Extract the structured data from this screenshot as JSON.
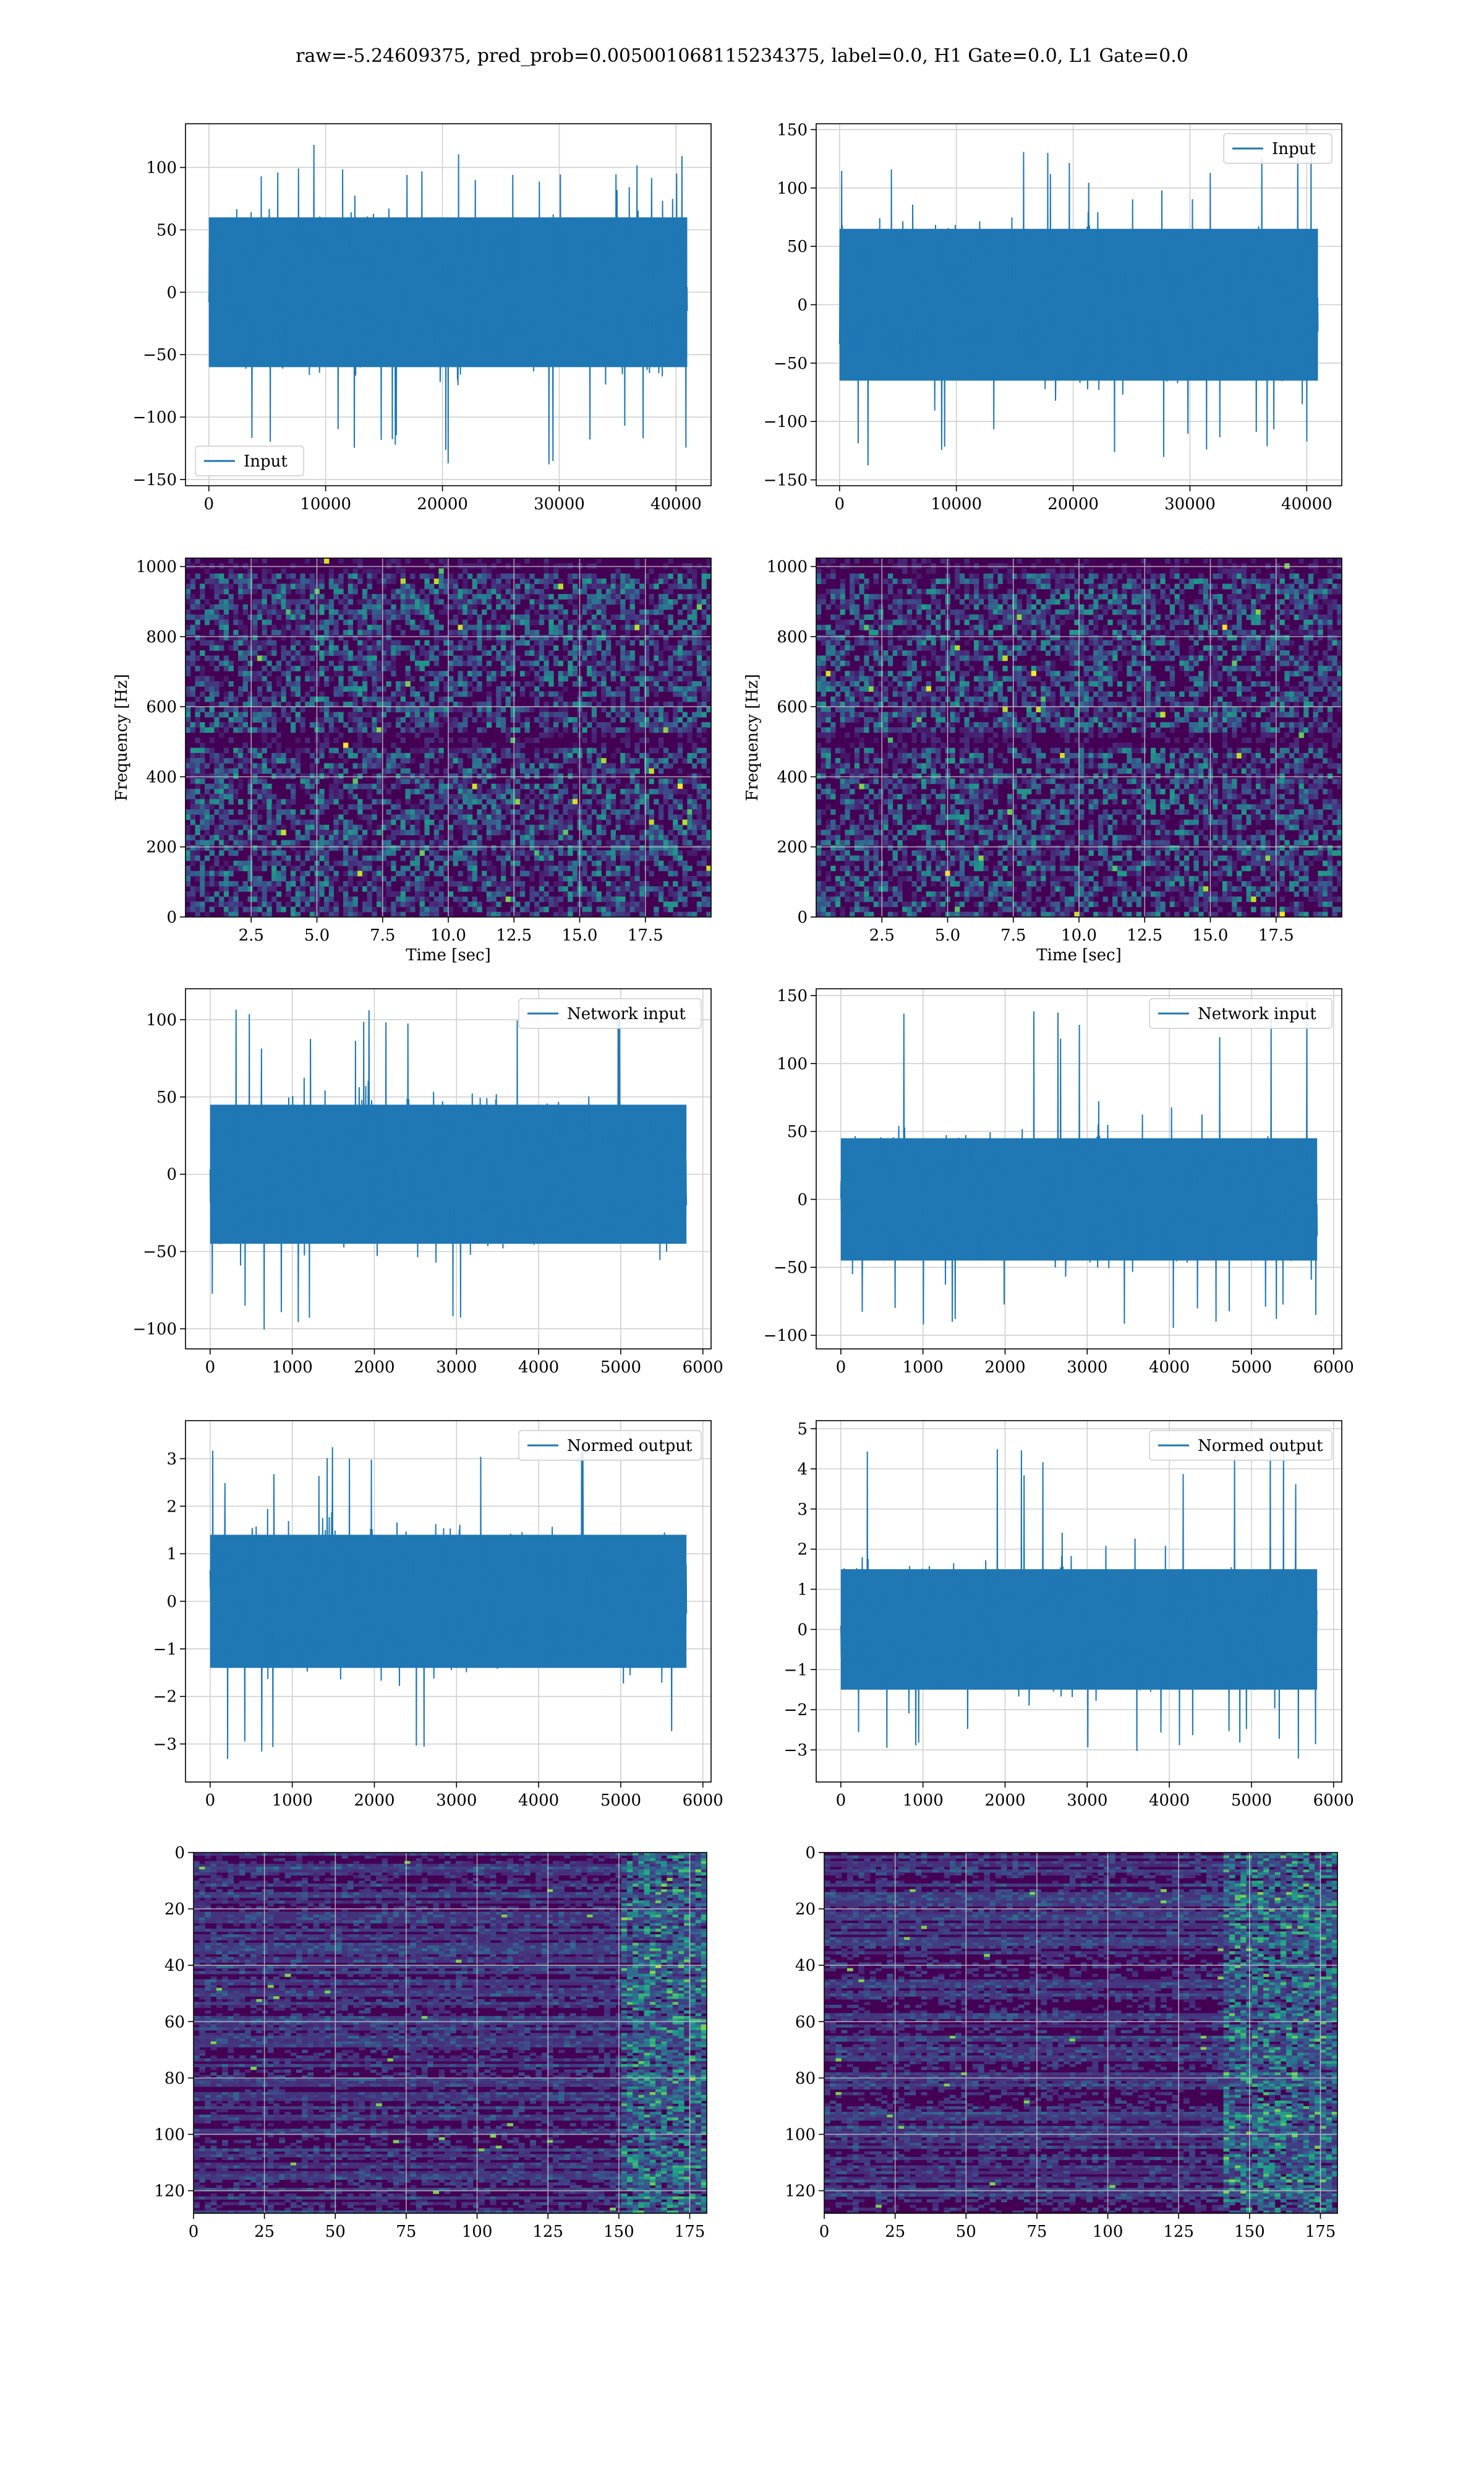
{
  "suptitle": "raw=-5.24609375, pred_prob=0.005001068115234375, label=0.0, H1 Gate=0.0, L1 Gate=0.0",
  "colors": {
    "line": "#1f77b4",
    "grid": "#d0d0d0",
    "viridis_low": "#440154",
    "viridis_mid": "#21918c",
    "viridis_high": "#fde725"
  },
  "chart_data": [
    {
      "id": "input-h1",
      "type": "line",
      "title": "",
      "xlabel": "",
      "ylabel": "",
      "legend": {
        "label": "Input",
        "loc": "lower-left"
      },
      "xlim": [
        -2000,
        43000
      ],
      "ylim": [
        -155,
        135
      ],
      "xticks": [
        0,
        10000,
        20000,
        30000,
        40000
      ],
      "xticklabels": [
        "0",
        "10000",
        "20000",
        "30000",
        "40000"
      ],
      "yticks": [
        -150,
        -100,
        -50,
        0,
        50,
        100
      ],
      "yticklabels": [
        "−150",
        "−100",
        "−50",
        "0",
        "50",
        "100"
      ],
      "signal": {
        "n": 40960,
        "x_range": [
          0,
          40960
        ],
        "typical_amplitude": 60,
        "envelope_max": 119,
        "envelope_min": -138
      }
    },
    {
      "id": "input-l1",
      "type": "line",
      "title": "",
      "xlabel": "",
      "ylabel": "",
      "legend": {
        "label": "Input",
        "loc": "upper-right"
      },
      "xlim": [
        -2000,
        43000
      ],
      "ylim": [
        -155,
        155
      ],
      "xticks": [
        0,
        10000,
        20000,
        30000,
        40000
      ],
      "xticklabels": [
        "0",
        "10000",
        "20000",
        "30000",
        "40000"
      ],
      "yticks": [
        -150,
        -100,
        -50,
        0,
        50,
        100,
        150
      ],
      "yticklabels": [
        "−150",
        "−100",
        "−50",
        "0",
        "50",
        "100",
        "150"
      ],
      "signal": {
        "n": 40960,
        "x_range": [
          0,
          40960
        ],
        "typical_amplitude": 65,
        "envelope_max": 140,
        "envelope_min": -142
      }
    },
    {
      "id": "spec-h1",
      "type": "heatmap",
      "title": "",
      "xlabel": "Time [sec]",
      "ylabel": "Frequency [Hz]",
      "xlim": [
        0,
        20
      ],
      "ylim": [
        0,
        1024
      ],
      "xticks": [
        2.5,
        5.0,
        7.5,
        10.0,
        12.5,
        15.0,
        17.5
      ],
      "xticklabels": [
        "2.5",
        "5.0",
        "7.5",
        "10.0",
        "12.5",
        "15.0",
        "17.5"
      ],
      "yticks": [
        0,
        200,
        400,
        600,
        800,
        1000
      ],
      "yticklabels": [
        "0",
        "200",
        "400",
        "600",
        "800",
        "1000"
      ],
      "colormap": "viridis",
      "dark_bands_hz": [
        500,
        1000
      ]
    },
    {
      "id": "spec-l1",
      "type": "heatmap",
      "title": "",
      "xlabel": "Time [sec]",
      "ylabel": "Frequency [Hz]",
      "xlim": [
        0,
        20
      ],
      "ylim": [
        0,
        1024
      ],
      "xticks": [
        2.5,
        5.0,
        7.5,
        10.0,
        12.5,
        15.0,
        17.5
      ],
      "xticklabels": [
        "2.5",
        "5.0",
        "7.5",
        "10.0",
        "12.5",
        "15.0",
        "17.5"
      ],
      "yticks": [
        0,
        200,
        400,
        600,
        800,
        1000
      ],
      "yticklabels": [
        "0",
        "200",
        "400",
        "600",
        "800",
        "1000"
      ],
      "colormap": "viridis",
      "dark_bands_hz": [
        500,
        1000
      ]
    },
    {
      "id": "netin-h1",
      "type": "line",
      "title": "",
      "xlabel": "",
      "ylabel": "",
      "legend": {
        "label": "Network input",
        "loc": "upper-right"
      },
      "xlim": [
        -300,
        6100
      ],
      "ylim": [
        -113,
        120
      ],
      "xticks": [
        0,
        1000,
        2000,
        3000,
        4000,
        5000,
        6000
      ],
      "xticklabels": [
        "0",
        "1000",
        "2000",
        "3000",
        "4000",
        "5000",
        "6000"
      ],
      "yticks": [
        -100,
        -50,
        0,
        50,
        100
      ],
      "yticklabels": [
        "−100",
        "−50",
        "0",
        "50",
        "100"
      ],
      "signal": {
        "n": 5800,
        "x_range": [
          0,
          5800
        ],
        "typical_amplitude": 45,
        "envelope_max": 108,
        "envelope_min": -103
      }
    },
    {
      "id": "netin-l1",
      "type": "line",
      "title": "",
      "xlabel": "",
      "ylabel": "",
      "legend": {
        "label": "Network input",
        "loc": "upper-right"
      },
      "xlim": [
        -300,
        6100
      ],
      "ylim": [
        -110,
        155
      ],
      "xticks": [
        0,
        1000,
        2000,
        3000,
        4000,
        5000,
        6000
      ],
      "xticklabels": [
        "0",
        "1000",
        "2000",
        "3000",
        "4000",
        "5000",
        "6000"
      ],
      "yticks": [
        -100,
        -50,
        0,
        50,
        100,
        150
      ],
      "yticklabels": [
        "−100",
        "−50",
        "0",
        "50",
        "100",
        "150"
      ],
      "signal": {
        "n": 5800,
        "x_range": [
          0,
          5800
        ],
        "typical_amplitude": 45,
        "envelope_max": 148,
        "envelope_min": -103
      }
    },
    {
      "id": "normed-h1",
      "type": "line",
      "title": "",
      "xlabel": "",
      "ylabel": "",
      "legend": {
        "label": "Normed output",
        "loc": "upper-right"
      },
      "xlim": [
        -300,
        6100
      ],
      "ylim": [
        -3.8,
        3.8
      ],
      "xticks": [
        0,
        1000,
        2000,
        3000,
        4000,
        5000,
        6000
      ],
      "xticklabels": [
        "0",
        "1000",
        "2000",
        "3000",
        "4000",
        "5000",
        "6000"
      ],
      "yticks": [
        -3,
        -2,
        -1,
        0,
        1,
        2,
        3
      ],
      "yticklabels": [
        "−3",
        "−2",
        "−1",
        "0",
        "1",
        "2",
        "3"
      ],
      "signal": {
        "n": 5800,
        "x_range": [
          0,
          5800
        ],
        "typical_amplitude": 1.4,
        "envelope_max": 3.3,
        "envelope_min": -3.4
      }
    },
    {
      "id": "normed-l1",
      "type": "line",
      "title": "",
      "xlabel": "",
      "ylabel": "",
      "legend": {
        "label": "Normed output",
        "loc": "upper-right"
      },
      "xlim": [
        -300,
        6100
      ],
      "ylim": [
        -3.8,
        5.2
      ],
      "xticks": [
        0,
        1000,
        2000,
        3000,
        4000,
        5000,
        6000
      ],
      "xticklabels": [
        "0",
        "1000",
        "2000",
        "3000",
        "4000",
        "5000",
        "6000"
      ],
      "yticks": [
        -3,
        -2,
        -1,
        0,
        1,
        2,
        3,
        4,
        5
      ],
      "yticklabels": [
        "−3",
        "−2",
        "−1",
        "0",
        "1",
        "2",
        "3",
        "4",
        "5"
      ],
      "signal": {
        "n": 5800,
        "x_range": [
          0,
          5800
        ],
        "typical_amplitude": 1.5,
        "envelope_max": 4.8,
        "envelope_min": -3.3
      }
    },
    {
      "id": "features-h1",
      "type": "heatmap",
      "title": "",
      "xlabel": "",
      "ylabel": "",
      "xlim": [
        0,
        181
      ],
      "ylim": [
        128,
        0
      ],
      "xticks": [
        0,
        25,
        50,
        75,
        100,
        125,
        150,
        175
      ],
      "xticklabels": [
        "0",
        "25",
        "50",
        "75",
        "100",
        "125",
        "150",
        "175"
      ],
      "yticks": [
        0,
        20,
        40,
        60,
        80,
        100,
        120
      ],
      "yticklabels": [
        "0",
        "20",
        "40",
        "60",
        "80",
        "100",
        "120"
      ],
      "colormap": "viridis",
      "bright_region_x": [
        150,
        181
      ]
    },
    {
      "id": "features-l1",
      "type": "heatmap",
      "title": "",
      "xlabel": "",
      "ylabel": "",
      "xlim": [
        0,
        181
      ],
      "ylim": [
        128,
        0
      ],
      "xticks": [
        0,
        25,
        50,
        75,
        100,
        125,
        150,
        175
      ],
      "xticklabels": [
        "0",
        "25",
        "50",
        "75",
        "100",
        "125",
        "150",
        "175"
      ],
      "yticks": [
        0,
        20,
        40,
        60,
        80,
        100,
        120
      ],
      "yticklabels": [
        "0",
        "20",
        "40",
        "60",
        "80",
        "100",
        "120"
      ],
      "colormap": "viridis",
      "bright_region_x": [
        140,
        181
      ]
    }
  ]
}
